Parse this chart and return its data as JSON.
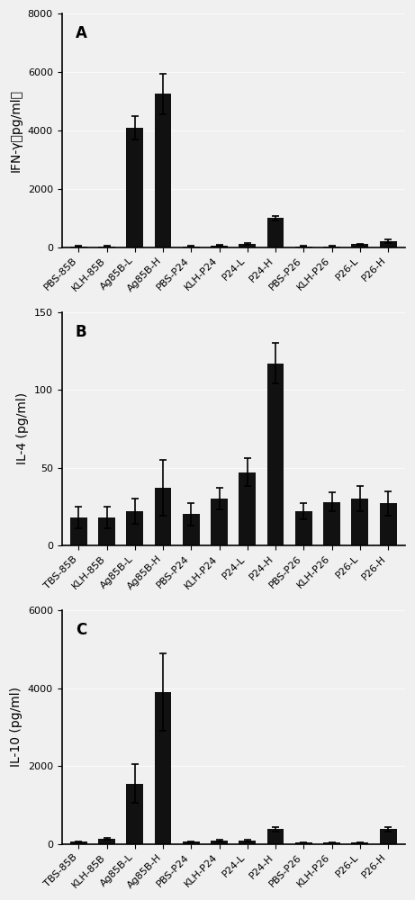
{
  "panel_A": {
    "label": "A",
    "ylabel": "IFN-γ（pg/ml）",
    "ylim": [
      0,
      8000
    ],
    "yticks": [
      0,
      2000,
      4000,
      6000,
      8000
    ],
    "categories": [
      "PBS-85B",
      "KLH-85B",
      "Ag85B-L",
      "Ag85B-H",
      "PBS-P24",
      "KLH-P24",
      "P24-L",
      "P24-H",
      "PBS-P26",
      "KLH-P26",
      "P26-L",
      "P26-H"
    ],
    "values": [
      30,
      30,
      4100,
      5250,
      30,
      50,
      120,
      1000,
      25,
      25,
      100,
      200
    ],
    "errors": [
      10,
      10,
      400,
      700,
      10,
      15,
      30,
      80,
      10,
      10,
      20,
      50
    ]
  },
  "panel_B": {
    "label": "B",
    "ylabel": "IL-4 (pg/ml)",
    "ylim": [
      0,
      150
    ],
    "yticks": [
      0,
      50,
      100,
      150
    ],
    "categories": [
      "TBS-85B",
      "KLH-85B",
      "Ag85B-L",
      "Ag85B-H",
      "PBS-P24",
      "KLH-P24",
      "P24-L",
      "P24-H",
      "PBS-P26",
      "KLH-P26",
      "P26-L",
      "P26-H"
    ],
    "values": [
      18,
      18,
      22,
      37,
      20,
      30,
      47,
      117,
      22,
      28,
      30,
      27
    ],
    "errors": [
      7,
      7,
      8,
      18,
      7,
      7,
      9,
      13,
      5,
      6,
      8,
      8
    ]
  },
  "panel_C": {
    "label": "C",
    "ylabel": "IL-10 (pg/ml)",
    "ylim": [
      0,
      6000
    ],
    "yticks": [
      0,
      2000,
      4000,
      6000
    ],
    "categories": [
      "TBS-85B",
      "KLH-85B",
      "Ag85B-L",
      "Ag85B-H",
      "PBS-P24",
      "KLH-P24",
      "P24-L",
      "P24-H",
      "PBS-P26",
      "KLH-P26",
      "P26-L",
      "P26-H"
    ],
    "values": [
      50,
      130,
      1550,
      3900,
      50,
      80,
      80,
      380,
      30,
      30,
      30,
      380
    ],
    "errors": [
      15,
      30,
      500,
      1000,
      15,
      20,
      20,
      60,
      10,
      10,
      10,
      60
    ]
  },
  "bar_color": "#111111",
  "bar_width": 0.6,
  "background_color": "#f0f0f0",
  "label_fontsize": 10,
  "tick_fontsize": 8,
  "panel_label_fontsize": 12
}
